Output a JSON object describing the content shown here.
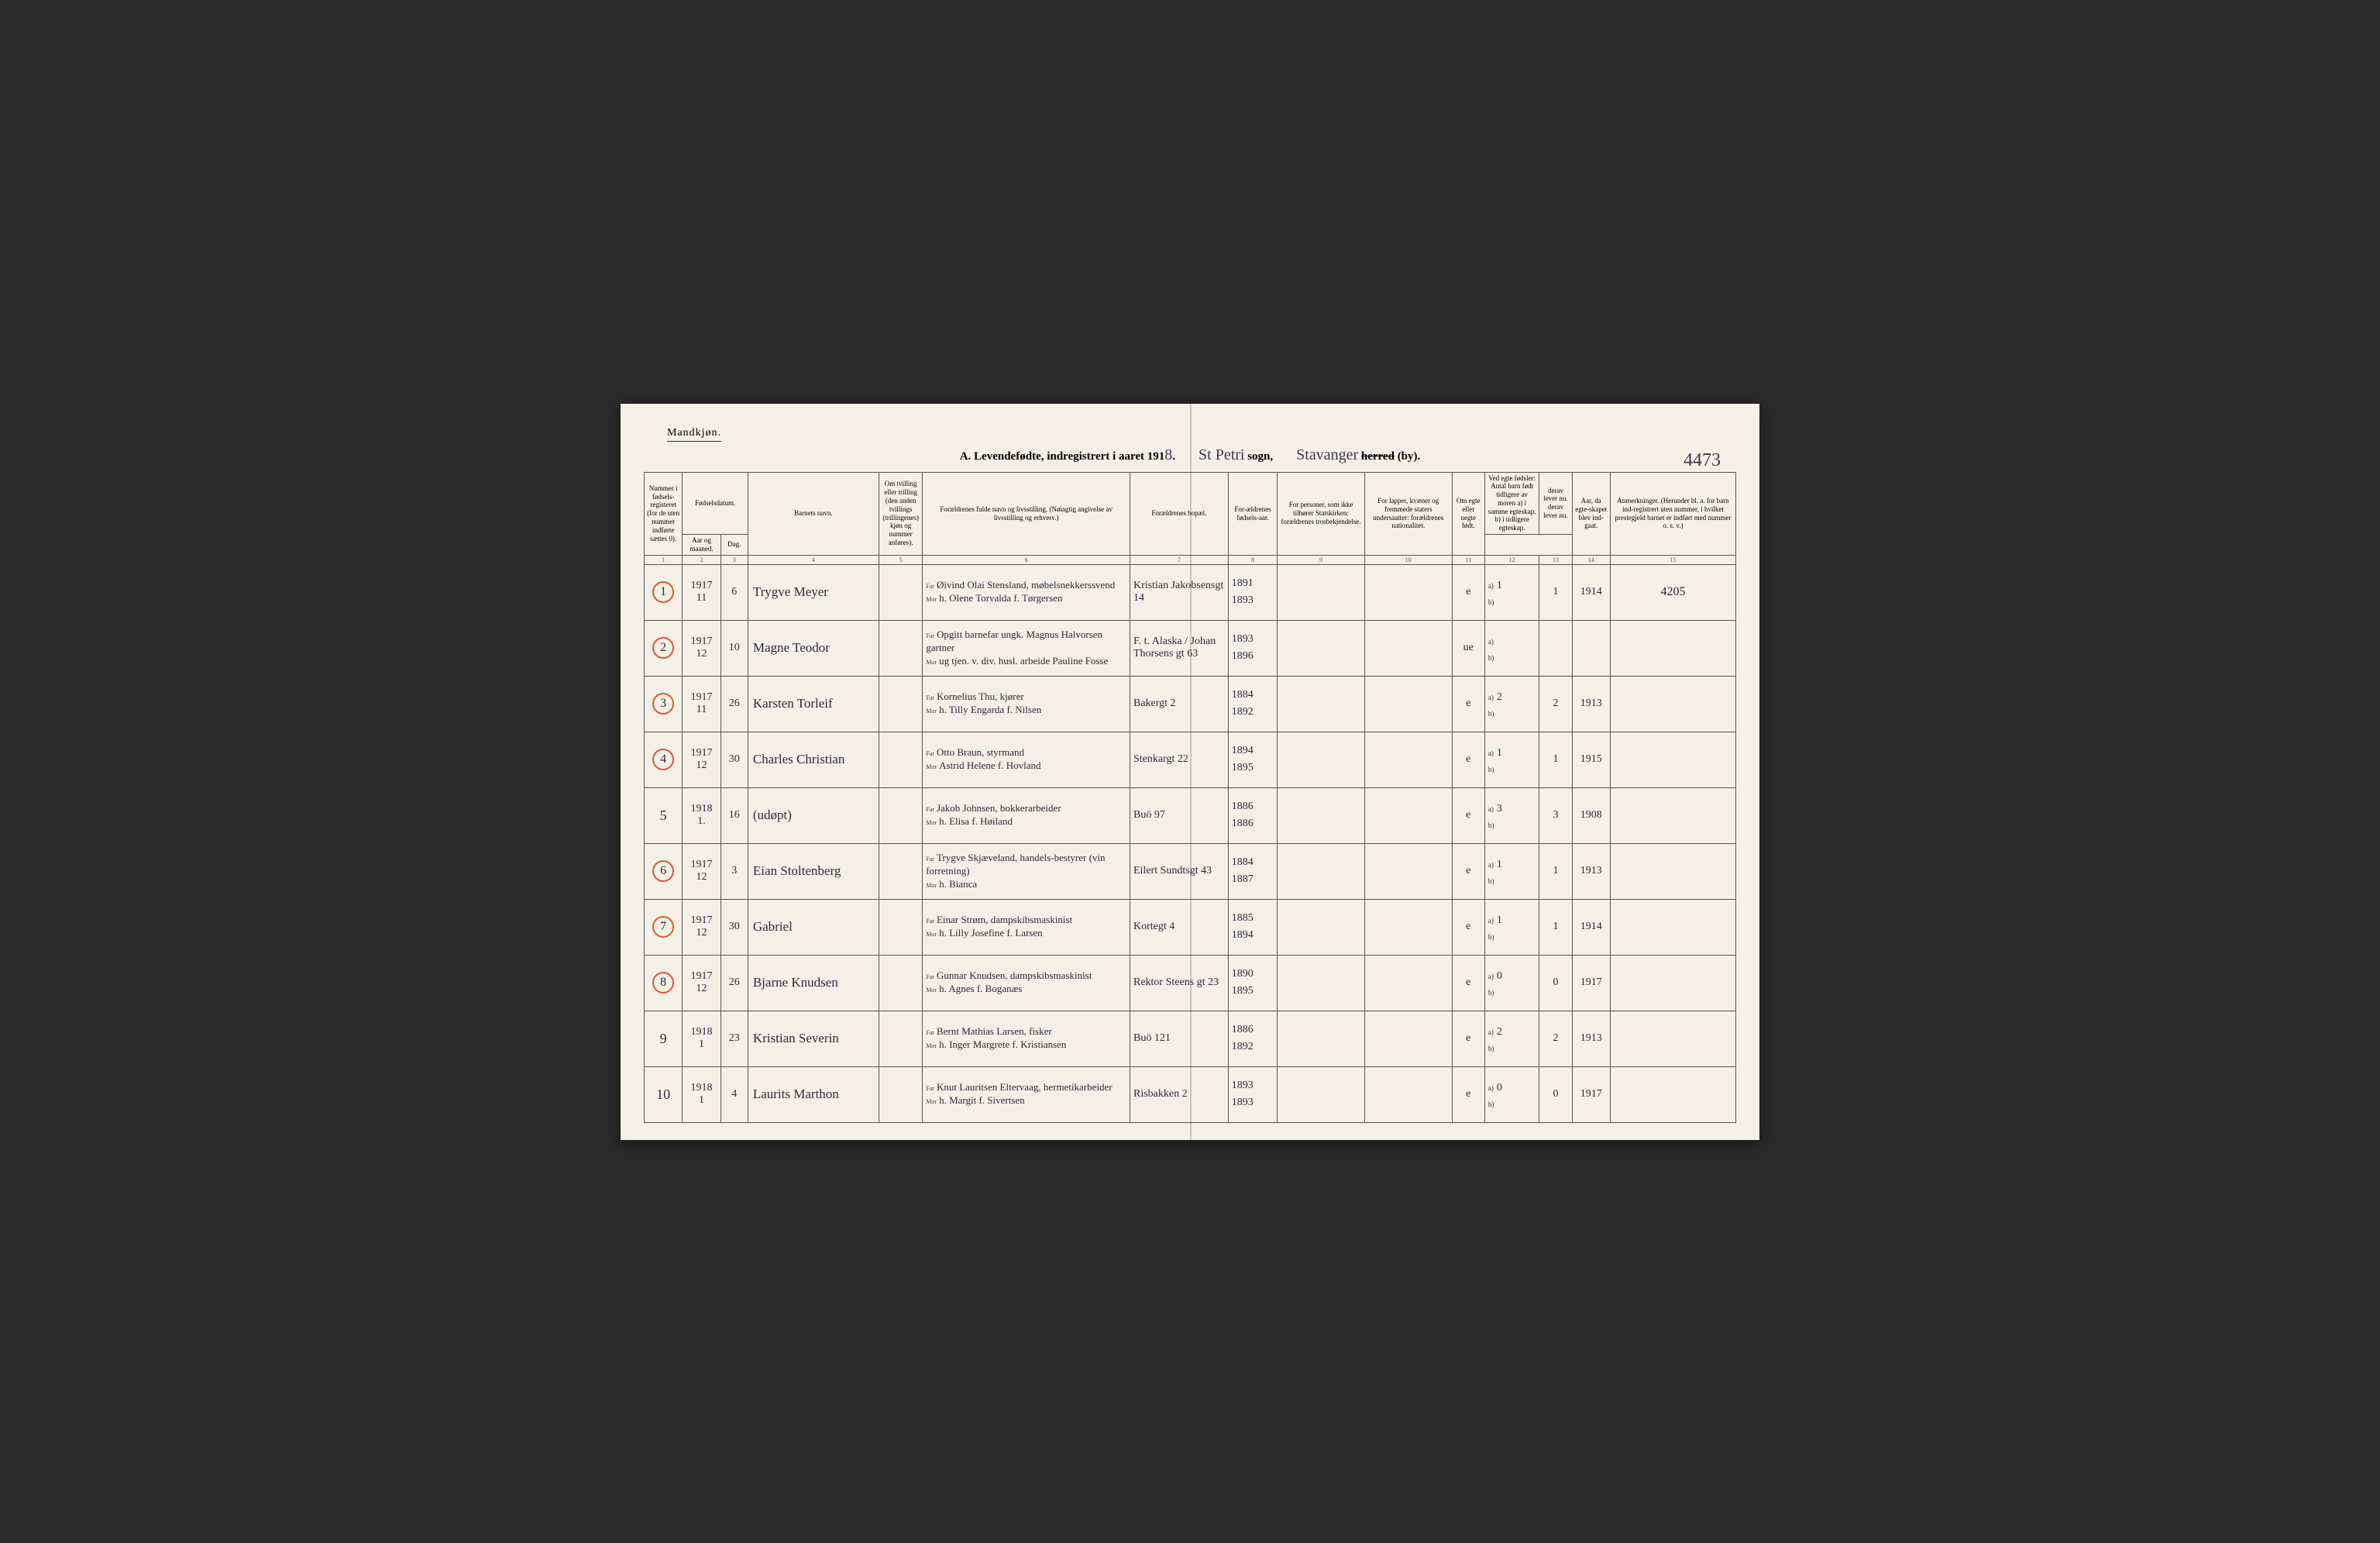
{
  "gender": "Mandkjøn.",
  "title": {
    "prefix": "A.  Levendefødte, indregistrert i aaret 191",
    "year_suffix": "8",
    "parish": "St Petri",
    "parish_label": "sogn,",
    "district": "Stavanger",
    "district_label_strike": "herred",
    "district_label_by": "(by)."
  },
  "page_number": "4473",
  "headers": {
    "c1": "Nummer i fødsels-registeret (for de uten nummer indførte sættes 0).",
    "c2": "Fødselsdatum.",
    "c2a": "Aar og maaned.",
    "c2b": "Dag.",
    "c4": "Barnets navn.",
    "c5": "Om tvilling eller trilling (den anden tvillings (trillingenes) kjøn og nummer anføres).",
    "c6": "Forældrenes fulde navn og livsstilling. (Nøiagtig angivelse av livsstilling og erhverv.)",
    "c7": "Forældrenes bopæl.",
    "c8": "For-ældrenes fødsels-aar.",
    "c9": "For personer, som ikke tilhører Statskirken: forældrenes trosbekjendelse.",
    "c10": "For lapper, kvæner og fremmede staters undersaatter: forældrenes nationalitet.",
    "c11": "Om egte eller uegte født.",
    "c12": "Ved egte fødsler: Antal barn født tidligere av moren a) i samme egteskap. b) i tidligere egteskap.",
    "c12b": "derav lever nu. derav lever nu.",
    "c14": "Aar, da egte-skapet blev ind-gaat.",
    "c15": "Anmerkninger. (Herunder bl. a. for barn ind-registrert uten nummer, i hvilket prestegjeld barnet er indført med nummer o. s. v.)"
  },
  "colnums": [
    "1",
    "2",
    "3",
    "4",
    "5",
    "6",
    "7",
    "8",
    "9",
    "10",
    "11",
    "12",
    "13",
    "14",
    "15"
  ],
  "rows": [
    {
      "num": "1",
      "circled": true,
      "year_mo": "1917\n11",
      "day": "6",
      "name": "Trygve Meyer",
      "far": "Øivind Olai Stensland, møbelsnekkerssvend",
      "mor": "h. Olene Torvalda f. Tørgersen",
      "addr": "Kristian Jakobsensgt 14",
      "fyears": "1891\n1893",
      "egte": "e",
      "a": "1",
      "a2": "1",
      "marr": "1914",
      "remark": "4205"
    },
    {
      "num": "2",
      "circled": true,
      "year_mo": "1917\n12",
      "day": "10",
      "name": "Magne Teodor",
      "far": "Opgitt barnefar ungk. Magnus Halvorsen gartner",
      "mor": "ug tjen. v. div. husl. arbeide Pauline Fosse",
      "addr": "F. t. Alaska / Johan Thorsens gt 63",
      "fyears": "1893\n1896",
      "egte": "ue",
      "a": "",
      "a2": "",
      "marr": "",
      "remark": ""
    },
    {
      "num": "3",
      "circled": true,
      "year_mo": "1917\n11",
      "day": "26",
      "name": "Karsten Torleif",
      "far": "Kornelius Thu, kjører",
      "mor": "h. Tilly Engarda f. Nilsen",
      "addr": "Bakergt 2",
      "fyears": "1884\n1892",
      "egte": "e",
      "a": "2",
      "a2": "2",
      "marr": "1913",
      "remark": ""
    },
    {
      "num": "4",
      "circled": true,
      "year_mo": "1917\n12",
      "day": "30",
      "name": "Charles Christian",
      "far": "Otto Braun, styrmand",
      "mor": "Astrid Helene f. Hovland",
      "addr": "Stenkargt 22",
      "fyears": "1894\n1895",
      "egte": "e",
      "a": "1",
      "a2": "1",
      "marr": "1915",
      "remark": ""
    },
    {
      "num": "5",
      "circled": false,
      "year_mo": "1918\n1.",
      "day": "16",
      "name": "(udøpt)",
      "far": "Jakob Johnsen, bokkerarbeider",
      "mor": "h. Elisa f. Høiland",
      "addr": "Buö 97",
      "fyears": "1886\n1886",
      "egte": "e",
      "a": "3",
      "a2": "3",
      "marr": "1908",
      "remark": ""
    },
    {
      "num": "6",
      "circled": true,
      "year_mo": "1917\n12",
      "day": "3",
      "name": "Eian Stoltenberg",
      "far": "Trygve Skjæveland, handels-bestyrer (vin forretning)",
      "mor": "h. Bianca",
      "addr": "Eilert Sundtsgt 43",
      "fyears": "1884\n1887",
      "egte": "e",
      "a": "1",
      "a2": "1",
      "marr": "1913",
      "remark": ""
    },
    {
      "num": "7",
      "circled": true,
      "year_mo": "1917\n12",
      "day": "30",
      "name": "Gabriel",
      "far": "Einar Strøm, dampskibsmaskinist",
      "mor": "h. Lilly Josefine f. Larsen",
      "addr": "Kortegt 4",
      "fyears": "1885\n1894",
      "egte": "e",
      "a": "1",
      "a2": "1",
      "marr": "1914",
      "remark": ""
    },
    {
      "num": "8",
      "circled": true,
      "year_mo": "1917\n12",
      "day": "26",
      "name": "Bjarne Knudsen",
      "far": "Gunnar Knudsen, dampskibsmaskinist",
      "mor": "h. Agnes f. Boganæs",
      "addr": "Rektor Steens gt 23",
      "fyears": "1890\n1895",
      "egte": "e",
      "a": "0",
      "a2": "0",
      "marr": "1917",
      "remark": ""
    },
    {
      "num": "9",
      "circled": false,
      "year_mo": "1918\n1",
      "day": "23",
      "name": "Kristian Severin",
      "far": "Bernt Mathias Larsen, fisker",
      "mor": "h. Inger Margrete f. Kristiansen",
      "addr": "Buö 121",
      "fyears": "1886\n1892",
      "egte": "e",
      "a": "2",
      "a2": "2",
      "marr": "1913",
      "remark": ""
    },
    {
      "num": "10",
      "circled": false,
      "year_mo": "1918\n1",
      "day": "4",
      "name": "Laurits Marthon",
      "far": "Knut Lauritsen Eltervaag, hermetikarbeider",
      "mor": "h. Margit f. Sivertsen",
      "addr": "Risbakken 2",
      "fyears": "1893\n1893",
      "egte": "e",
      "a": "0",
      "a2": "0",
      "marr": "1917",
      "remark": ""
    }
  ]
}
